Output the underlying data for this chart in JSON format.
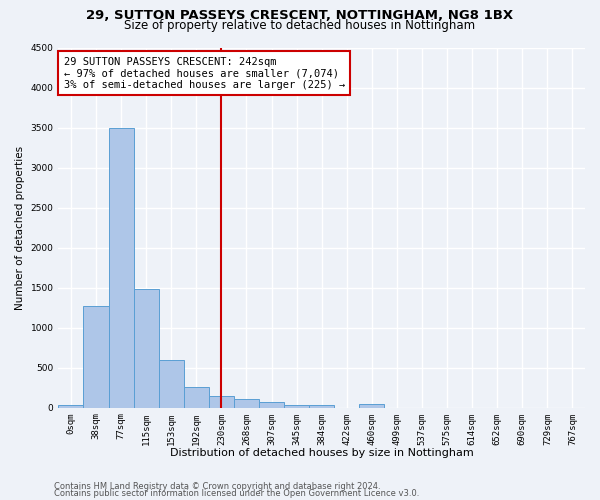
{
  "title1": "29, SUTTON PASSEYS CRESCENT, NOTTINGHAM, NG8 1BX",
  "title2": "Size of property relative to detached houses in Nottingham",
  "xlabel": "Distribution of detached houses by size in Nottingham",
  "ylabel": "Number of detached properties",
  "bar_labels": [
    "0sqm",
    "38sqm",
    "77sqm",
    "115sqm",
    "153sqm",
    "192sqm",
    "230sqm",
    "268sqm",
    "307sqm",
    "345sqm",
    "384sqm",
    "422sqm",
    "460sqm",
    "499sqm",
    "537sqm",
    "575sqm",
    "614sqm",
    "652sqm",
    "690sqm",
    "729sqm",
    "767sqm"
  ],
  "bar_values": [
    30,
    1270,
    3500,
    1480,
    590,
    255,
    145,
    105,
    65,
    30,
    30,
    0,
    45,
    0,
    0,
    0,
    0,
    0,
    0,
    0,
    0
  ],
  "bar_color": "#aec6e8",
  "bar_edge_color": "#5a9fd4",
  "ylim": [
    0,
    4500
  ],
  "yticks": [
    0,
    500,
    1000,
    1500,
    2000,
    2500,
    3000,
    3500,
    4000,
    4500
  ],
  "property_line_x": 6.0,
  "property_line_color": "#cc0000",
  "annotation_text": "29 SUTTON PASSEYS CRESCENT: 242sqm\n← 97% of detached houses are smaller (7,074)\n3% of semi-detached houses are larger (225) →",
  "annotation_box_color": "#ffffff",
  "annotation_box_edge": "#cc0000",
  "footer1": "Contains HM Land Registry data © Crown copyright and database right 2024.",
  "footer2": "Contains public sector information licensed under the Open Government Licence v3.0.",
  "background_color": "#eef2f8",
  "grid_color": "#ffffff",
  "title1_fontsize": 9.5,
  "title2_fontsize": 8.5,
  "xlabel_fontsize": 8,
  "ylabel_fontsize": 7.5,
  "tick_fontsize": 6.5,
  "annotation_fontsize": 7.5,
  "footer_fontsize": 6
}
